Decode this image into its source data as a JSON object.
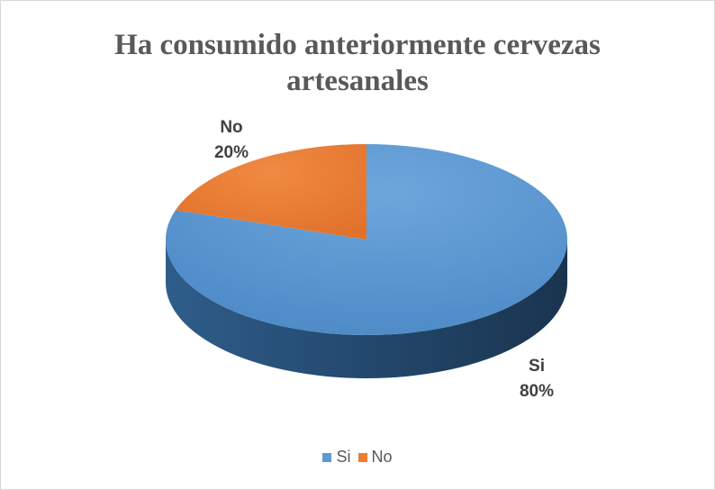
{
  "chart_data": {
    "type": "pie",
    "title": "Ha consumido anteriormente cervezas artesanales",
    "title_lines": [
      "Ha consumido anteriormente cervezas",
      "artesanales"
    ],
    "categories": [
      "Si",
      "No"
    ],
    "values": [
      80,
      20
    ],
    "data_labels": [
      "80%",
      "20%"
    ],
    "colors": [
      "#5b9bd5",
      "#ed7d31"
    ],
    "legend": {
      "position": "bottom",
      "entries": [
        "Si",
        "No"
      ]
    }
  }
}
